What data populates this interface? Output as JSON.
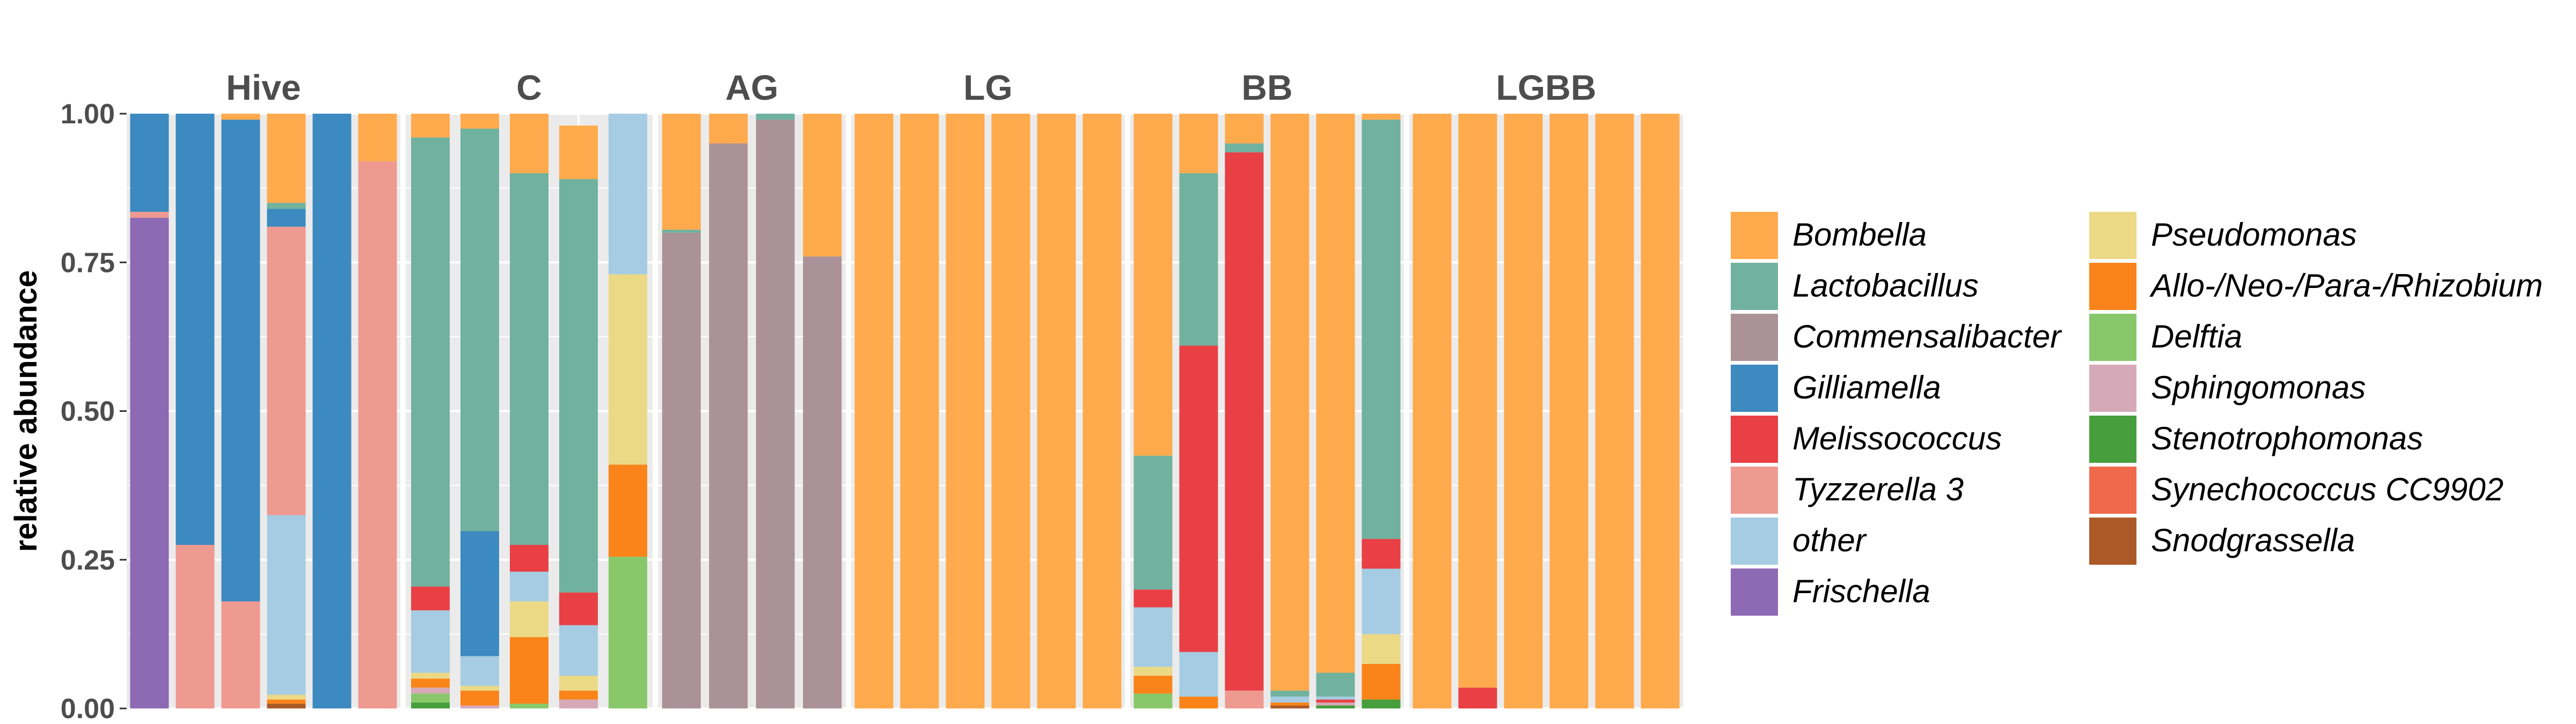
{
  "chart_data": {
    "type": "bar",
    "stacked": true,
    "ylabel": "relative abundance",
    "xlabel": "",
    "ylim": [
      0,
      1
    ],
    "yticks": [
      "0.00",
      "0.25",
      "0.50",
      "0.75",
      "1.00"
    ],
    "grid": true,
    "legend_position": "right",
    "taxa": [
      {
        "name": "Bombella",
        "color": "#FFAA4D"
      },
      {
        "name": "Lactobacillus",
        "color": "#70B29E"
      },
      {
        "name": "Commensalibacter",
        "color": "#AB9298"
      },
      {
        "name": "Gilliamella",
        "color": "#3C8AC0"
      },
      {
        "name": "Melissococcus",
        "color": "#E84045"
      },
      {
        "name": "Tyzzerella 3",
        "color": "#EE9A91"
      },
      {
        "name": "other",
        "color": "#A5CCE2"
      },
      {
        "name": "Frischella",
        "color": "#8E69B4"
      },
      {
        "name": "Pseudomonas",
        "color": "#EBD986"
      },
      {
        "name": "Allo-/Neo-/Para-/Rhizobium",
        "color": "#FA8419"
      },
      {
        "name": "Delftia",
        "color": "#88C86B"
      },
      {
        "name": "Sphingomonas",
        "color": "#D6A9B8"
      },
      {
        "name": "Stenotrophomonas",
        "color": "#479E3D"
      },
      {
        "name": "Synechococcus CC9902",
        "color": "#F1694B"
      },
      {
        "name": "Snodgrassella",
        "color": "#AB5A27"
      }
    ],
    "facets": [
      {
        "title": "Hive",
        "samples": [
          {
            "Frischella": 0.825,
            "Tyzzerella 3": 0.01,
            "Gilliamella": 0.165
          },
          {
            "Tyzzerella 3": 0.275,
            "Gilliamella": 0.725
          },
          {
            "Tyzzerella 3": 0.18,
            "Gilliamella": 0.81,
            "Bombella": 0.01
          },
          {
            "Snodgrassella": 0.008,
            "Allo-/Neo-/Para-/Rhizobium": 0.007,
            "Pseudomonas": 0.008,
            "other": 0.302,
            "Tyzzerella 3": 0.485,
            "Gilliamella": 0.03,
            "Lactobacillus": 0.01,
            "Bombella": 0.15
          },
          {
            "Gilliamella": 1.0
          },
          {
            "Tyzzerella 3": 0.92,
            "Bombella": 0.08
          }
        ]
      },
      {
        "title": "C",
        "samples": [
          {
            "Stenotrophomonas": 0.01,
            "Delftia": 0.015,
            "Sphingomonas": 0.01,
            "Allo-/Neo-/Para-/Rhizobium": 0.015,
            "Pseudomonas": 0.01,
            "other": 0.105,
            "Melissococcus": 0.04,
            "Lactobacillus": 0.755,
            "Bombella": 0.04
          },
          {
            "Sphingomonas": 0.005,
            "Allo-/Neo-/Para-/Rhizobium": 0.025,
            "Pseudomonas": 0.008,
            "other": 0.05,
            "Gilliamella": 0.21,
            "Lactobacillus": 0.677,
            "Bombella": 0.025
          },
          {
            "Delftia": 0.008,
            "Allo-/Neo-/Para-/Rhizobium": 0.112,
            "Pseudomonas": 0.06,
            "other": 0.05,
            "Melissococcus": 0.045,
            "Lactobacillus": 0.625,
            "Bombella": 0.1
          },
          {
            "Sphingomonas": 0.015,
            "Allo-/Neo-/Para-/Rhizobium": 0.015,
            "Pseudomonas": 0.025,
            "other": 0.085,
            "Melissococcus": 0.055,
            "Lactobacillus": 0.695,
            "Bombella": 0.09
          },
          {
            "Delftia": 0.255,
            "Allo-/Neo-/Para-/Rhizobium": 0.155,
            "Pseudomonas": 0.32,
            "other": 0.27
          }
        ]
      },
      {
        "title": "AG",
        "samples": [
          {
            "Commensalibacter": 0.8,
            "Lactobacillus": 0.005,
            "Bombella": 0.195
          },
          {
            "Commensalibacter": 0.95,
            "Bombella": 0.05
          },
          {
            "Commensalibacter": 0.99,
            "Lactobacillus": 0.01
          },
          {
            "Commensalibacter": 0.76,
            "Bombella": 0.24
          }
        ]
      },
      {
        "title": "LG",
        "samples": [
          {
            "Bombella": 1.0
          },
          {
            "Bombella": 1.0
          },
          {
            "Bombella": 1.0
          },
          {
            "Bombella": 1.0
          },
          {
            "Bombella": 1.0
          },
          {
            "Bombella": 1.0
          }
        ]
      },
      {
        "title": "BB",
        "samples": [
          {
            "Delftia": 0.025,
            "Allo-/Neo-/Para-/Rhizobium": 0.03,
            "Pseudomonas": 0.015,
            "other": 0.1,
            "Melissococcus": 0.03,
            "Lactobacillus": 0.225,
            "Bombella": 0.575
          },
          {
            "Allo-/Neo-/Para-/Rhizobium": 0.02,
            "other": 0.075,
            "Melissococcus": 0.515,
            "Lactobacillus": 0.29,
            "Bombella": 0.1
          },
          {
            "Tyzzerella 3": 0.03,
            "Melissococcus": 0.905,
            "Lactobacillus": 0.015,
            "Bombella": 0.05
          },
          {
            "Snodgrassella": 0.005,
            "Allo-/Neo-/Para-/Rhizobium": 0.005,
            "other": 0.01,
            "Lactobacillus": 0.01,
            "Bombella": 0.97
          },
          {
            "Stenotrophomonas": 0.005,
            "Sphingomonas": 0.005,
            "Melissococcus": 0.005,
            "other": 0.005,
            "Lactobacillus": 0.04,
            "Bombella": 0.94
          },
          {
            "Stenotrophomonas": 0.015,
            "Allo-/Neo-/Para-/Rhizobium": 0.06,
            "Pseudomonas": 0.05,
            "other": 0.11,
            "Melissococcus": 0.05,
            "Lactobacillus": 0.705,
            "Bombella": 0.01
          }
        ]
      },
      {
        "title": "LGBB",
        "samples": [
          {
            "Bombella": 1.0
          },
          {
            "Melissococcus": 0.035,
            "Bombella": 0.965
          },
          {
            "Bombella": 1.0
          },
          {
            "Bombella": 1.0
          },
          {
            "Bombella": 1.0
          },
          {
            "Bombella": 1.0
          }
        ]
      }
    ]
  }
}
